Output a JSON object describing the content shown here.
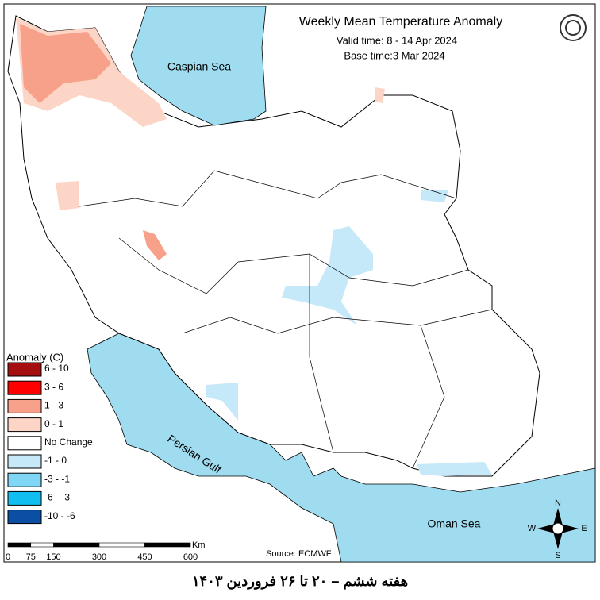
{
  "header": {
    "title": "Weekly Mean Temperature Anomaly",
    "valid_time": "Valid time: 8 - 14 Apr 2024",
    "base_time": "Base time:3 Mar 2024"
  },
  "labels": {
    "caspian": "Caspian Sea",
    "gulf": "Persian Gulf",
    "oman": "Oman Sea"
  },
  "legend": {
    "title": "Anomaly (C)",
    "items": [
      {
        "label": "6 - 10",
        "color": "#a50f0f"
      },
      {
        "label": "3 - 6",
        "color": "#ff0000"
      },
      {
        "label": "1 - 3",
        "color": "#f7a08a"
      },
      {
        "label": "0 - 1",
        "color": "#fcd5c6"
      },
      {
        "label": "No Change",
        "color": "#ffffff"
      },
      {
        "label": "-1 - 0",
        "color": "#c6e9fa"
      },
      {
        "label": "-3 - -1",
        "color": "#7fd6f5"
      },
      {
        "label": "-6 - -3",
        "color": "#10bff0"
      },
      {
        "label": "-10 - -6",
        "color": "#0a4fa3"
      }
    ]
  },
  "scale": {
    "ticks": [
      0,
      75,
      150,
      300,
      450,
      600
    ],
    "unit": "Km"
  },
  "source": "Source: ECMWF",
  "compass": {
    "n": "N",
    "e": "E",
    "s": "S",
    "w": "W"
  },
  "footer": "هفته ششم – ۲۰ تا ۲۶ فروردین ۱۴۰۳"
}
